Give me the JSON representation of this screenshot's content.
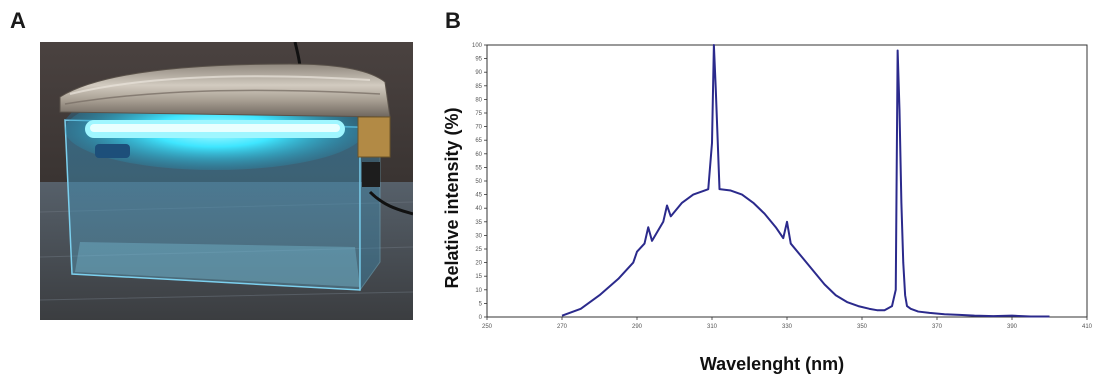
{
  "panels": {
    "a_label": "A",
    "b_label": "B"
  },
  "photo": {
    "subject": "uv-lamp-box-photo",
    "colors": {
      "lamp_glow": "#3fe6ff",
      "foil": "#b9b2a8",
      "glass_tint": "#5aa9c9",
      "background": "#2b2624"
    }
  },
  "chart_data": {
    "type": "line",
    "title": "",
    "xlabel": "Wavelenght (nm)",
    "ylabel": "Relative intensity (%)",
    "xlim": [
      250,
      410
    ],
    "ylim": [
      0,
      100
    ],
    "x_ticks": [
      250,
      270,
      290,
      310,
      330,
      350,
      370,
      390,
      410
    ],
    "x_tick_labels": [
      "250",
      "270",
      "290",
      "310",
      "330",
      "350",
      "370",
      "390",
      "410"
    ],
    "y_ticks": [
      0,
      5,
      10,
      15,
      20,
      25,
      30,
      35,
      40,
      45,
      50,
      55,
      60,
      65,
      70,
      75,
      80,
      85,
      90,
      95,
      100
    ],
    "y_tick_labels": [
      "0",
      "5",
      "10",
      "15",
      "20",
      "25",
      "30",
      "35",
      "40",
      "45",
      "50",
      "55",
      "60",
      "65",
      "70",
      "75",
      "80",
      "85",
      "90",
      "95",
      "100"
    ],
    "grid": false,
    "legend": "none",
    "color": "#2b2a8c",
    "series": [
      {
        "x": [
          270,
          275,
          280,
          285,
          289,
          290,
          292,
          293,
          294,
          297,
          298,
          299,
          302,
          305,
          308,
          309,
          310,
          310.5,
          311,
          312,
          315,
          318,
          321,
          324,
          327,
          329,
          330,
          331,
          334,
          337,
          340,
          343,
          346,
          349,
          352,
          354,
          356,
          358,
          359,
          359.5,
          360,
          360.5,
          361,
          361.5,
          362,
          363,
          365,
          368,
          372,
          376,
          380,
          385,
          390,
          395,
          400
        ],
        "y": [
          0.5,
          3,
          8,
          14,
          20,
          24,
          27,
          33,
          28,
          35,
          41,
          37,
          42,
          45,
          46.5,
          47,
          64,
          100,
          84,
          47,
          46.5,
          45,
          42,
          38,
          33,
          29,
          35,
          27,
          22,
          17,
          12,
          8,
          5.5,
          4,
          3,
          2.5,
          2.5,
          4,
          10,
          98,
          76,
          42,
          20,
          8,
          4,
          3,
          2,
          1.5,
          1,
          0.8,
          0.5,
          0.3,
          0.5,
          0.2,
          0.2
        ]
      }
    ]
  }
}
